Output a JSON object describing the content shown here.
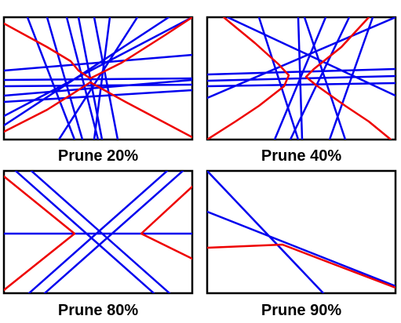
{
  "colors": {
    "background": "#ffffff",
    "frame": "#000000",
    "blue_lines": "#0000ee",
    "red_curves": "#ee0000"
  },
  "panels": [
    {
      "caption": "Prune 20%"
    },
    {
      "caption": "Prune 40%"
    },
    {
      "caption": "Prune 80%"
    },
    {
      "caption": "Prune 90%"
    }
  ]
}
